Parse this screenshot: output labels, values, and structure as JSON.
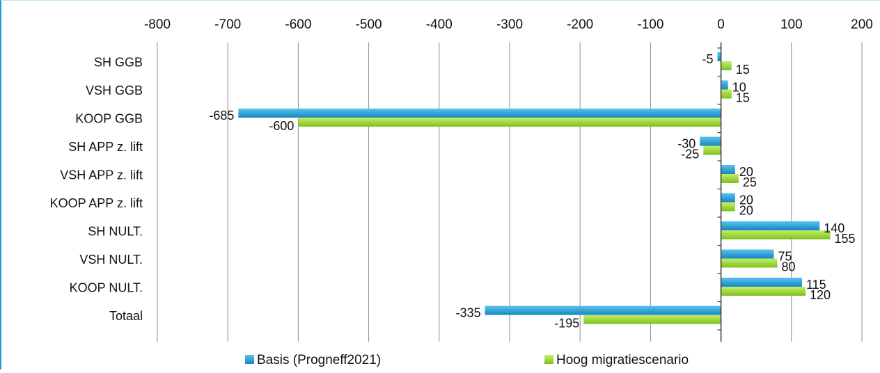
{
  "chart_data": {
    "type": "bar",
    "orientation": "horizontal",
    "categories": [
      "SH GGB",
      "VSH GGB",
      "KOOP GGB",
      "SH APP z. lift",
      "VSH APP z. lift",
      "KOOP APP z. lift",
      "SH NULT.",
      "VSH NULT.",
      "KOOP NULT.",
      "Totaal"
    ],
    "series": [
      {
        "name": "Basis (Progneff2021)",
        "values": [
          -5,
          10,
          -685,
          -30,
          20,
          20,
          140,
          75,
          115,
          -335
        ],
        "color": "#1a9fd6"
      },
      {
        "name": "Hoog migratiescenario",
        "values": [
          15,
          15,
          -600,
          -25,
          25,
          20,
          155,
          80,
          120,
          -195
        ],
        "color": "#8ed12a"
      }
    ],
    "xlim": [
      -800,
      200
    ],
    "x_ticks": [
      -800,
      -700,
      -600,
      -500,
      -400,
      -300,
      -200,
      -100,
      0,
      100,
      200
    ],
    "x_tick_labels": [
      "-800",
      "-700",
      "-600",
      "-500",
      "-400",
      "-300",
      "-200",
      "-100",
      "0",
      "100",
      "200"
    ],
    "xaxis_position": "top",
    "grid": true,
    "legend_position": "bottom",
    "title": "",
    "xlabel": "",
    "ylabel": ""
  }
}
